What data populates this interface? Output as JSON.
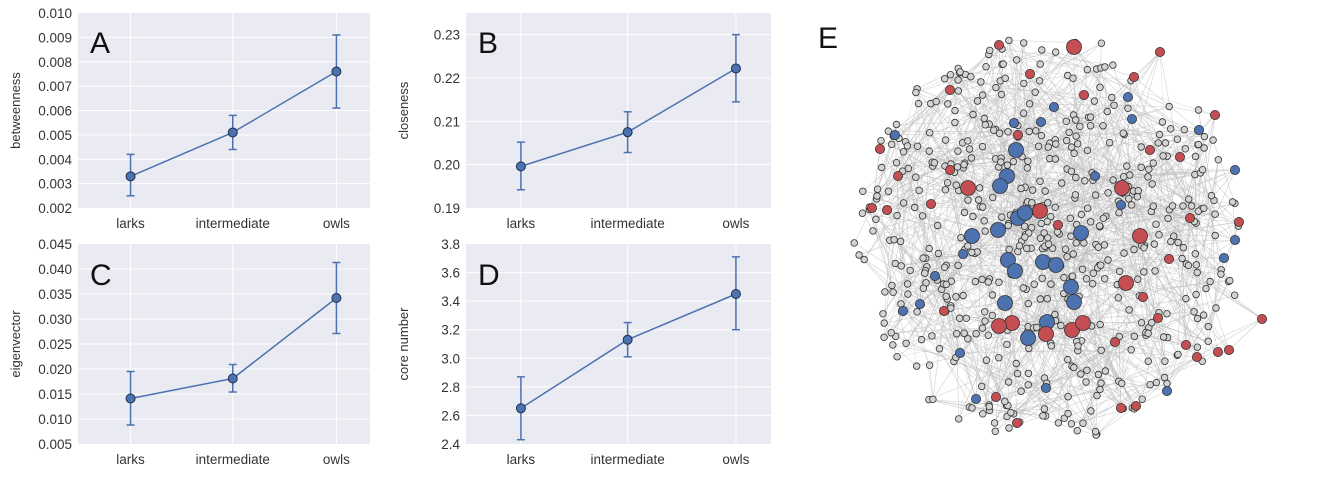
{
  "chart_data": [
    {
      "type": "line",
      "panel": "A",
      "categories": [
        "larks",
        "intermediate",
        "owls"
      ],
      "values": [
        0.0033,
        0.0051,
        0.0076
      ],
      "error_low": [
        0.0025,
        0.0044,
        0.0061
      ],
      "error_high": [
        0.0042,
        0.0058,
        0.0091
      ],
      "ylabel": "betweenness",
      "ylim": [
        0.002,
        0.01
      ],
      "yticks": [
        "0.002",
        "0.003",
        "0.004",
        "0.005",
        "0.006",
        "0.007",
        "0.008",
        "0.009",
        "0.010"
      ],
      "grid": true
    },
    {
      "type": "line",
      "panel": "B",
      "categories": [
        "larks",
        "intermediate",
        "owls"
      ],
      "values": [
        0.1996,
        0.2075,
        0.2222
      ],
      "error_low": [
        0.1942,
        0.2028,
        0.2145
      ],
      "error_high": [
        0.2052,
        0.2122,
        0.23
      ],
      "ylabel": "closeness",
      "ylim": [
        0.19,
        0.235
      ],
      "yticks": [
        "0.19",
        "0.20",
        "0.21",
        "0.22",
        "0.23"
      ],
      "grid": true
    },
    {
      "type": "line",
      "panel": "C",
      "categories": [
        "larks",
        "intermediate",
        "owls"
      ],
      "values": [
        0.0141,
        0.0181,
        0.0342
      ],
      "error_low": [
        0.0088,
        0.0154,
        0.0271
      ],
      "error_high": [
        0.0195,
        0.0209,
        0.0413
      ],
      "ylabel": "eigenvector",
      "ylim": [
        0.005,
        0.045
      ],
      "yticks": [
        "0.005",
        "0.010",
        "0.015",
        "0.020",
        "0.025",
        "0.030",
        "0.035",
        "0.040",
        "0.045"
      ],
      "grid": true
    },
    {
      "type": "line",
      "panel": "D",
      "categories": [
        "larks",
        "intermediate",
        "owls"
      ],
      "values": [
        2.65,
        3.13,
        3.45
      ],
      "error_low": [
        2.43,
        3.01,
        3.2
      ],
      "error_high": [
        2.87,
        3.25,
        3.71
      ],
      "ylabel": "core  number",
      "ylim": [
        2.4,
        3.8
      ],
      "yticks": [
        "2.4",
        "2.6",
        "2.8",
        "3.0",
        "3.2",
        "3.4",
        "3.6",
        "3.8"
      ],
      "grid": true
    },
    {
      "type": "network",
      "panel": "E",
      "node_groups": [
        "larks",
        "intermediate",
        "owls"
      ],
      "node_colors": {
        "larks": "#4c72b0",
        "owls": "#c44e52",
        "intermediate": "#d3d3d3"
      }
    }
  ],
  "colors": {
    "panel_bg": "#eaeaf2",
    "grid": "#ffffff",
    "series": "#4c72b0",
    "larks_node": "#4c72b0",
    "owls_node": "#c44e52",
    "other_node": "#d3d3d3",
    "edge": "#bdbdbd"
  }
}
